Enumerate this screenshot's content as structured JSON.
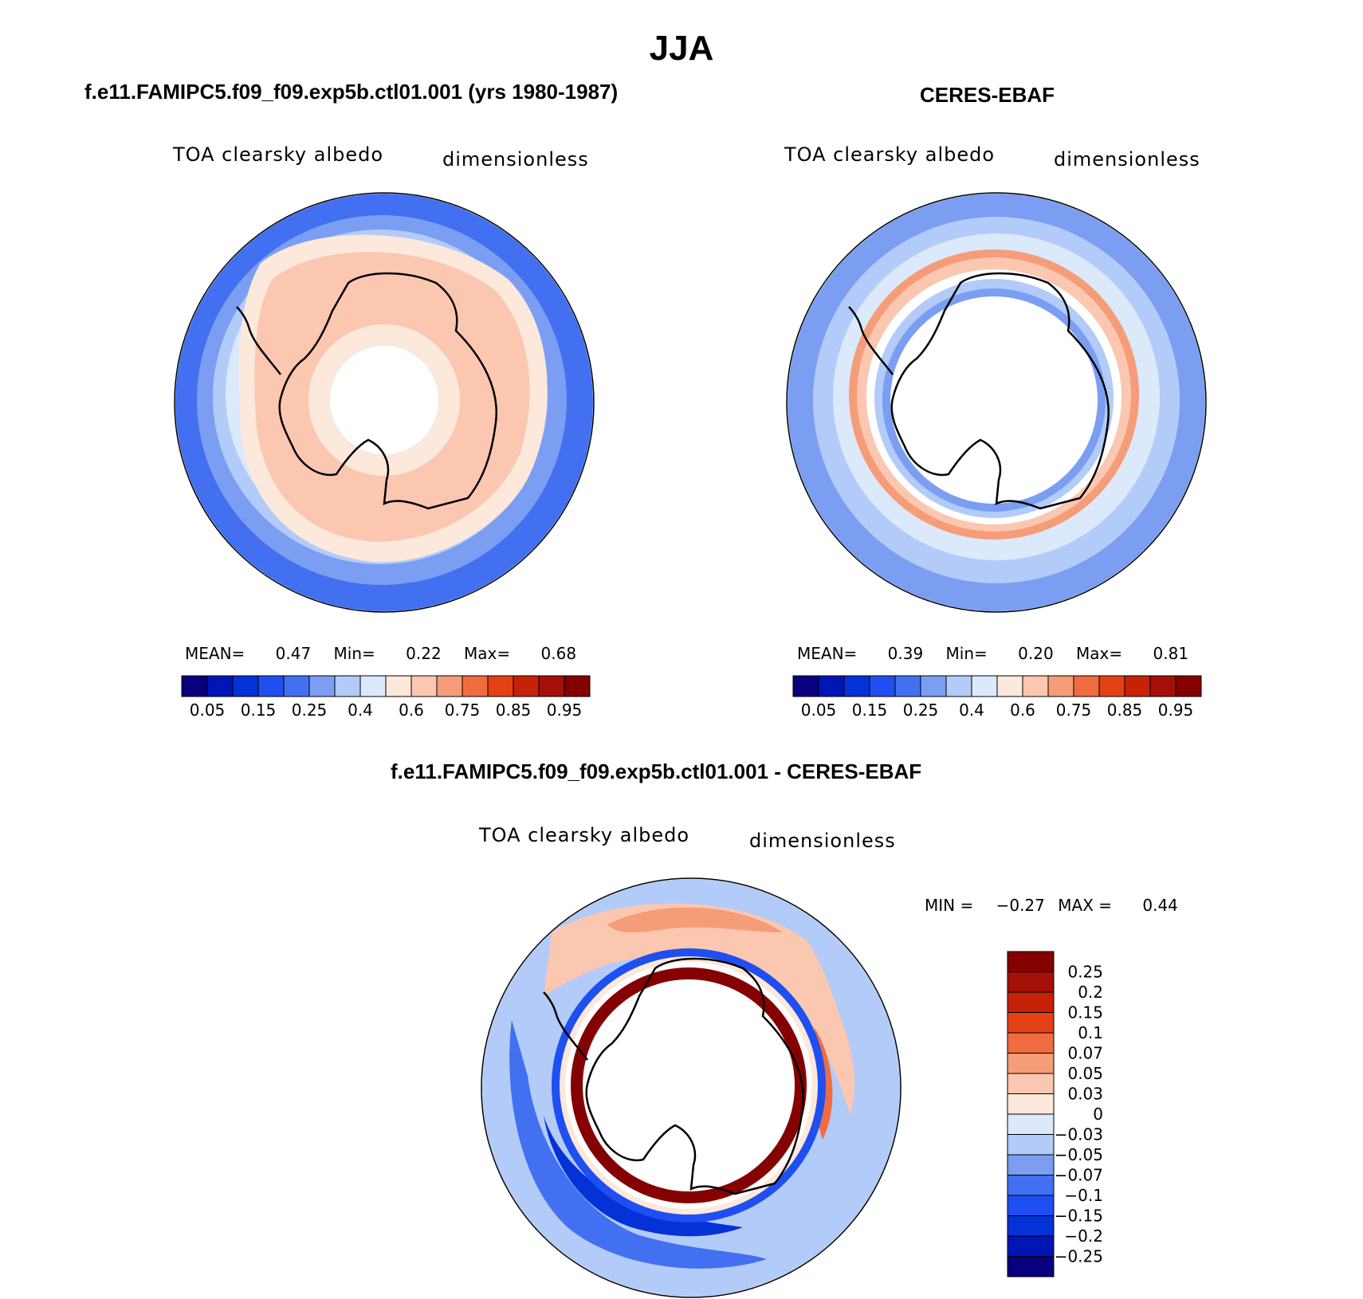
{
  "page_title": "JJA",
  "panels": [
    {
      "id": "model",
      "title": "f.e11.FAMIPC5.f09_f09.exp5b.ctl01.001 (yrs 1980-1987)",
      "field_label": "TOA clearsky albedo",
      "units_label": "dimensionless",
      "stats": {
        "mean_label": "MEAN=",
        "mean": "0.47",
        "min_label": "Min=",
        "min": "0.22",
        "max_label": "Max=",
        "max": "0.68"
      }
    },
    {
      "id": "obs",
      "title": "CERES-EBAF",
      "field_label": "TOA clearsky albedo",
      "units_label": "dimensionless",
      "stats": {
        "mean_label": "MEAN=",
        "mean": "0.39",
        "min_label": "Min=",
        "min": "0.20",
        "max_label": "Max=",
        "max": "0.81"
      }
    },
    {
      "id": "diff",
      "title": "f.e11.FAMIPC5.f09_f09.exp5b.ctl01.001 - CERES-EBAF",
      "field_label": "TOA clearsky albedo",
      "units_label": "dimensionless",
      "stats": {
        "min_label": "MIN =",
        "min": "−0.27",
        "max_label": "MAX =",
        "max": "0.44"
      }
    }
  ],
  "colorbar_abs": {
    "colors": [
      "#08007f",
      "#0015b6",
      "#0532d6",
      "#1f4ff0",
      "#4270f0",
      "#7b9ef2",
      "#b2cbf8",
      "#dbe9fb",
      "#fde8dc",
      "#fbc7b0",
      "#f59c78",
      "#f06c40",
      "#e34014",
      "#c52208",
      "#a41005",
      "#850000"
    ],
    "tick_labels": [
      "0.05",
      "0.15",
      "0.25",
      "0.4",
      "0.6",
      "0.75",
      "0.85",
      "0.95"
    ]
  },
  "colorbar_diff": {
    "colors": [
      "#850000",
      "#a41005",
      "#c52208",
      "#e34014",
      "#f06c40",
      "#f59c78",
      "#fbc7b0",
      "#fde8dc",
      "#dbe9fb",
      "#b2cbf8",
      "#7b9ef2",
      "#4270f0",
      "#1f4ff0",
      "#0532d6",
      "#0015b6",
      "#08007f"
    ],
    "tick_labels": [
      "0.25",
      "0.2",
      "0.15",
      "0.1",
      "0.07",
      "0.05",
      "0.03",
      "0",
      "−0.03",
      "−0.05",
      "−0.07",
      "−0.1",
      "−0.15",
      "−0.2",
      "−0.25"
    ]
  }
}
